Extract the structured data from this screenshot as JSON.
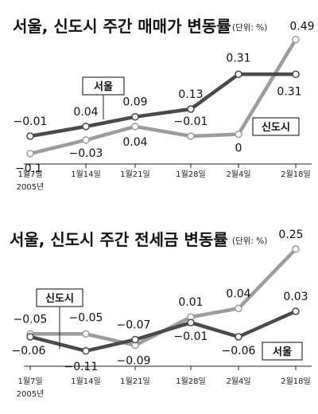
{
  "chart_data": [
    {
      "type": "line",
      "title": "서울, 신도시 주간 매매가 변동률",
      "unit": "(단위: %)",
      "categories": [
        "1월7일",
        "1월14일",
        "1월21일",
        "1월28일",
        "2월4일",
        "2월18일"
      ],
      "year_note": "2005년",
      "series": [
        {
          "name": "서울",
          "values": [
            -0.01,
            0.04,
            0.09,
            0.13,
            0.31,
            0.31
          ]
        },
        {
          "name": "신도시",
          "values": [
            -0.1,
            -0.03,
            0.04,
            -0.01,
            0,
            0.49
          ]
        }
      ],
      "ylim": [
        -0.15,
        0.55
      ],
      "grid": false,
      "data_labels": {
        "서울": [
          "−0.01",
          "0.04",
          "0.09",
          "0.13",
          "0.31",
          "0.31"
        ],
        "신도시": [
          "−0.1",
          "−0.03",
          "0.04",
          "−0.01",
          "0",
          "0.49"
        ]
      },
      "colors": {
        "서울": "#4a4a4a",
        "신도시": "#9c9c9c"
      }
    },
    {
      "type": "line",
      "title": "서울, 신도시 주간 전세금 변동률",
      "unit": "(단위: %)",
      "categories": [
        "1월7일",
        "1월14일",
        "1월21일",
        "1월28일",
        "2월4일",
        "2월18일"
      ],
      "year_note": "2005년",
      "series": [
        {
          "name": "서울",
          "values": [
            -0.06,
            -0.11,
            -0.07,
            -0.01,
            -0.06,
            0.03
          ]
        },
        {
          "name": "신도시",
          "values": [
            -0.05,
            -0.05,
            -0.09,
            0.01,
            0.04,
            0.25
          ]
        }
      ],
      "ylim": [
        -0.15,
        0.3
      ],
      "grid": false,
      "data_labels": {
        "서울": [
          "−0.06",
          "−0.11",
          "−0.07",
          "−0.01",
          "−0.06",
          "0.03"
        ],
        "신도시": [
          "−0.05",
          "−0.05",
          "−0.09",
          "0.01",
          "0.04",
          "0.25"
        ]
      },
      "colors": {
        "서울": "#4a4a4a",
        "신도시": "#9c9c9c"
      }
    }
  ]
}
